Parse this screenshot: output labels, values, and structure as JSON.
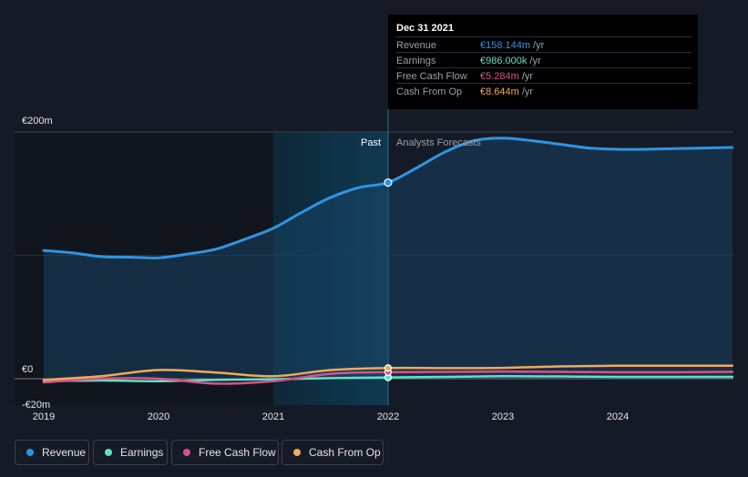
{
  "chart_data": {
    "type": "line",
    "y_unit_label_top": "€200m",
    "y_unit_label_zero": "€0",
    "y_unit_label_neg": "-€20m",
    "ylim": [
      -20,
      200
    ],
    "x_ticks": [
      "2019",
      "2020",
      "2021",
      "2022",
      "2023",
      "2024"
    ],
    "x_tick_values": [
      2019,
      2020,
      2021,
      2022,
      2023,
      2024
    ],
    "xlim": [
      2018.76,
      2024.98
    ],
    "divider_x": 2022,
    "shade_start_x": 2021,
    "past_label": "Past",
    "forecast_label": "Analysts Forecasts",
    "series": [
      {
        "name": "Revenue",
        "color": "#2e95e4",
        "x": [
          2019.0,
          2019.25,
          2019.5,
          2019.75,
          2020.0,
          2020.25,
          2020.5,
          2020.75,
          2021.0,
          2021.25,
          2021.5,
          2021.75,
          2022.0,
          2022.25,
          2022.5,
          2022.75,
          2023.0,
          2023.25,
          2023.5,
          2023.75,
          2024.0,
          2024.25,
          2024.5,
          2024.75,
          2025.0
        ],
        "y": [
          104,
          102,
          99,
          98.5,
          98,
          101,
          105,
          113,
          122,
          135,
          147,
          155,
          159,
          171,
          184,
          193,
          195,
          193,
          190,
          187,
          186,
          186,
          186.5,
          187,
          187.5
        ]
      },
      {
        "name": "Earnings",
        "color": "#5ee0c8",
        "x": [
          2019.0,
          2019.5,
          2020.0,
          2020.5,
          2021.0,
          2021.5,
          2022.0,
          2022.5,
          2023.0,
          2023.5,
          2024.0,
          2024.5,
          2025.0
        ],
        "y": [
          -2,
          -1.5,
          -2,
          -1,
          -0.5,
          0.5,
          0.986,
          1.5,
          2,
          1.8,
          1.5,
          1.5,
          1.5
        ]
      },
      {
        "name": "Free Cash Flow",
        "color": "#d6538a",
        "x": [
          2019.0,
          2019.5,
          2020.0,
          2020.5,
          2021.0,
          2021.5,
          2022.0,
          2022.5,
          2023.0,
          2023.5,
          2024.0,
          2024.5,
          2025.0
        ],
        "y": [
          -3,
          0,
          0,
          -4,
          -2,
          4,
          5.284,
          5.5,
          5.8,
          5.5,
          5.3,
          5.3,
          5.5
        ]
      },
      {
        "name": "Cash From Op",
        "color": "#f0aa5a",
        "x": [
          2019.0,
          2019.5,
          2020.0,
          2020.5,
          2021.0,
          2021.5,
          2022.0,
          2022.5,
          2023.0,
          2023.5,
          2024.0,
          2024.5,
          2025.0
        ],
        "y": [
          -1,
          2,
          7,
          5,
          2,
          7,
          8.644,
          8.6,
          8.8,
          10,
          10.5,
          10.5,
          10.5
        ]
      }
    ]
  },
  "tooltip": {
    "date": "Dec 31 2021",
    "rows": [
      {
        "label": "Revenue",
        "value": "€158.144m",
        "unit": "/yr",
        "color": "#2e95e4"
      },
      {
        "label": "Earnings",
        "value": "€986.000k",
        "unit": "/yr",
        "color": "#5ee0c8"
      },
      {
        "label": "Free Cash Flow",
        "value": "€5.284m",
        "unit": "/yr",
        "color": "#d6538a"
      },
      {
        "label": "Cash From Op",
        "value": "€8.644m",
        "unit": "/yr",
        "color": "#f0aa5a"
      }
    ]
  },
  "legend": [
    {
      "label": "Revenue",
      "color": "#2e95e4"
    },
    {
      "label": "Earnings",
      "color": "#5ee0c8"
    },
    {
      "label": "Free Cash Flow",
      "color": "#d6538a"
    },
    {
      "label": "Cash From Op",
      "color": "#f0aa5a"
    }
  ]
}
